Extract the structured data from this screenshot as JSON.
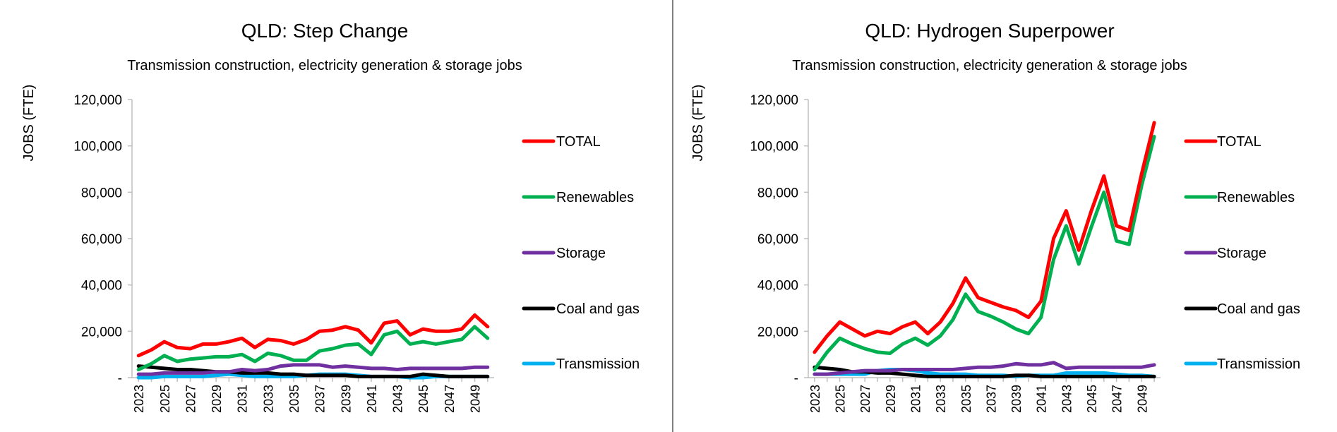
{
  "chart_data": [
    {
      "type": "line",
      "title": "QLD: Step Change",
      "subtitle": "Transmission construction, electricity generation & storage jobs",
      "xlabel": "",
      "ylabel": "JOBS (FTE)",
      "ylim": [
        0,
        120000
      ],
      "yticks": [
        "-",
        "20,000",
        "40,000",
        "60,000",
        "80,000",
        "100,000",
        "120,000"
      ],
      "ytick_values": [
        0,
        20000,
        40000,
        60000,
        80000,
        100000,
        120000
      ],
      "x": [
        2023,
        2024,
        2025,
        2026,
        2027,
        2028,
        2029,
        2030,
        2031,
        2032,
        2033,
        2034,
        2035,
        2036,
        2037,
        2038,
        2039,
        2040,
        2041,
        2042,
        2043,
        2044,
        2045,
        2046,
        2047,
        2048,
        2049,
        2050
      ],
      "xtick_labels": [
        "2023",
        "2025",
        "2027",
        "2029",
        "2031",
        "2033",
        "2035",
        "2037",
        "2039",
        "2041",
        "2043",
        "2045",
        "2047",
        "2049"
      ],
      "grid": false,
      "legend_position": "right",
      "series": [
        {
          "name": "TOTAL",
          "color": "#ff0000",
          "values": [
            9500,
            12000,
            15500,
            13000,
            12500,
            14500,
            14500,
            15500,
            17000,
            13000,
            16500,
            16000,
            14500,
            16500,
            20000,
            20500,
            22000,
            20500,
            15000,
            23500,
            24500,
            18500,
            21000,
            20000,
            20000,
            21000,
            27000,
            22000
          ]
        },
        {
          "name": "Renewables",
          "color": "#00b050",
          "values": [
            3500,
            6000,
            9500,
            7000,
            8000,
            8500,
            9000,
            9000,
            10000,
            7000,
            10500,
            9500,
            7500,
            7500,
            11500,
            12500,
            14000,
            14500,
            10000,
            18500,
            20000,
            14500,
            15500,
            14500,
            15500,
            16500,
            22000,
            17000
          ]
        },
        {
          "name": "Storage",
          "color": "#7030a0",
          "values": [
            1500,
            1500,
            2000,
            2000,
            2000,
            2000,
            2500,
            2500,
            3500,
            3000,
            3500,
            5000,
            5500,
            5500,
            5500,
            4500,
            5000,
            4500,
            4000,
            4000,
            3500,
            4000,
            4000,
            4000,
            4000,
            4000,
            4500,
            4500
          ]
        },
        {
          "name": "Coal and gas",
          "color": "#000000",
          "values": [
            5000,
            4500,
            4000,
            3500,
            3500,
            3000,
            2500,
            2500,
            2000,
            2000,
            2000,
            1500,
            1500,
            1000,
            1000,
            1000,
            1000,
            500,
            500,
            500,
            500,
            500,
            1500,
            1000,
            500,
            500,
            500,
            500
          ]
        },
        {
          "name": "Transmission",
          "color": "#00b0f0",
          "values": [
            0,
            0,
            500,
            500,
            500,
            500,
            1000,
            1500,
            1000,
            500,
            500,
            500,
            500,
            1000,
            1500,
            1500,
            1500,
            1000,
            500,
            500,
            500,
            0,
            0,
            500,
            500,
            500,
            500,
            500
          ]
        }
      ]
    },
    {
      "type": "line",
      "title": "QLD: Hydrogen Superpower",
      "subtitle": "Transmission construction, electricity generation & storage jobs",
      "xlabel": "",
      "ylabel": "JOBS (FTE)",
      "ylim": [
        0,
        120000
      ],
      "yticks": [
        "-",
        "20,000",
        "40,000",
        "60,000",
        "80,000",
        "100,000",
        "120,000"
      ],
      "ytick_values": [
        0,
        20000,
        40000,
        60000,
        80000,
        100000,
        120000
      ],
      "x": [
        2023,
        2024,
        2025,
        2026,
        2027,
        2028,
        2029,
        2030,
        2031,
        2032,
        2033,
        2034,
        2035,
        2036,
        2037,
        2038,
        2039,
        2040,
        2041,
        2042,
        2043,
        2044,
        2045,
        2046,
        2047,
        2048,
        2049,
        2050
      ],
      "xtick_labels": [
        "2023",
        "2025",
        "2027",
        "2029",
        "2031",
        "2033",
        "2035",
        "2037",
        "2039",
        "2041",
        "2043",
        "2045",
        "2047",
        "2049"
      ],
      "grid": false,
      "legend_position": "right",
      "series": [
        {
          "name": "TOTAL",
          "color": "#ff0000",
          "values": [
            11000,
            18000,
            24000,
            21000,
            18000,
            20000,
            19000,
            22000,
            24000,
            19000,
            24000,
            32000,
            43000,
            34500,
            32500,
            30500,
            29000,
            26000,
            33000,
            60000,
            72000,
            55000,
            72000,
            87000,
            65500,
            63500,
            88000,
            110000
          ]
        },
        {
          "name": "Renewables",
          "color": "#00b050",
          "values": [
            3500,
            11000,
            17000,
            14500,
            12500,
            11000,
            10500,
            14500,
            17000,
            14000,
            18000,
            25000,
            36000,
            28500,
            26500,
            24000,
            21000,
            19000,
            26000,
            51000,
            65500,
            49000,
            65000,
            80000,
            59000,
            57500,
            83000,
            104000
          ]
        },
        {
          "name": "Storage",
          "color": "#7030a0",
          "values": [
            1500,
            1500,
            2000,
            2500,
            3000,
            3000,
            3000,
            3500,
            3500,
            3500,
            3500,
            3500,
            4000,
            4500,
            4500,
            5000,
            6000,
            5500,
            5500,
            6500,
            4000,
            4500,
            4500,
            4500,
            4500,
            4500,
            4500,
            5500
          ]
        },
        {
          "name": "Coal and gas",
          "color": "#000000",
          "values": [
            4500,
            4000,
            3500,
            2500,
            2500,
            2000,
            2000,
            1500,
            1000,
            500,
            500,
            500,
            500,
            500,
            500,
            500,
            1000,
            1000,
            500,
            500,
            500,
            500,
            500,
            500,
            500,
            500,
            500,
            500
          ]
        },
        {
          "name": "Transmission",
          "color": "#00b0f0",
          "values": [
            1500,
            1500,
            1500,
            1500,
            1500,
            3000,
            3500,
            3500,
            3000,
            2000,
            1500,
            1500,
            1500,
            1000,
            1000,
            1000,
            500,
            1000,
            1000,
            1000,
            2000,
            2000,
            2000,
            2000,
            1500,
            1000,
            1000,
            500
          ]
        }
      ]
    }
  ]
}
